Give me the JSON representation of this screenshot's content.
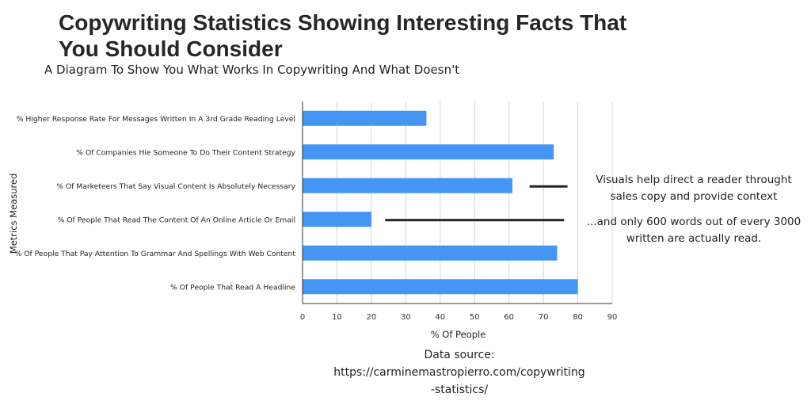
{
  "header": {
    "title": "Copywriting Statistics Showing Interesting Facts That You Should Consider",
    "subtitle": "A Diagram To Show You What Works In Copywriting And What Doesn't"
  },
  "annotations": {
    "note1": "Visuals help direct a reader throught sales copy and provide context",
    "note2": "...and only 600 words out of every 3000 written are actually read."
  },
  "source": {
    "line1": "Data source:",
    "line2": "https://carminemastropierro.com/copywriting",
    "line3": "-statistics/"
  },
  "chart_data": {
    "type": "bar",
    "orientation": "horizontal",
    "title": "",
    "xlabel": "% Of People",
    "ylabel": "Metrics Measured",
    "xlim": [
      0,
      90
    ],
    "xticks": [
      0,
      10,
      20,
      30,
      40,
      50,
      60,
      70,
      80,
      90
    ],
    "grid": true,
    "bar_color": "#4596f4",
    "categories": [
      "% Higher Response Rate For Messages Written In A 3rd Grade Reading Level",
      "% Of Companies Hie Someone To Do Their Content Strategy",
      "% Of Marketeers That Say Visual Content Is Absolutely Necessary",
      "% Of People That Read The Content Of An Online Article Or Email",
      "% Of People That Pay Attention To Grammar And Spellings With Web Content",
      "% Of People That Read A Headline"
    ],
    "values": [
      36,
      73,
      61,
      20,
      74,
      80
    ],
    "annotation_lines": [
      {
        "category_index": 2,
        "x_start": 66,
        "x_end": 77
      },
      {
        "category_index": 3,
        "x_start": 24,
        "x_end": 76
      }
    ]
  }
}
